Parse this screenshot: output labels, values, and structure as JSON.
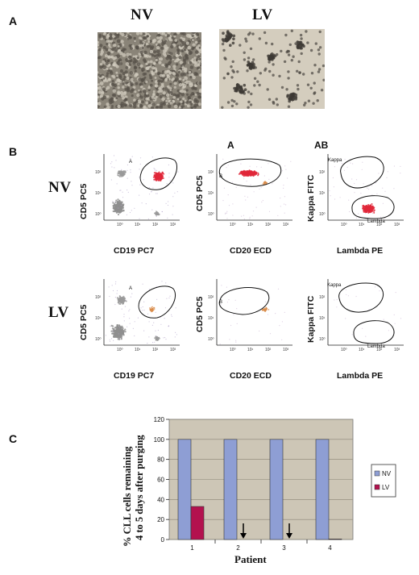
{
  "panel_a": {
    "letter": "A",
    "label_nv": "NV",
    "label_lv": "LV"
  },
  "panel_b": {
    "letter": "B",
    "row_nv": "NV",
    "row_lv": "LV",
    "plot_titles": [
      "",
      "A",
      "AB"
    ],
    "plots": [
      {
        "ylabel": "CD5 PC5",
        "xlabel": "CD19 PC7",
        "gate": "A"
      },
      {
        "ylabel": "CD5 PC5",
        "xlabel": "CD20 ECD",
        "gate": "B"
      },
      {
        "ylabel": "Kappa FITC",
        "xlabel": "Lambda PE",
        "gate_top": "Kappa",
        "gate_bottom": "Lambda"
      }
    ],
    "ticks": [
      "10⁰",
      "10¹",
      "10²"
    ],
    "xticks": [
      "10⁰",
      "10¹",
      "10²",
      "10³"
    ]
  },
  "panel_c": {
    "letter": "C",
    "chart_data": {
      "type": "bar",
      "categories": [
        "1",
        "2",
        "3",
        "4"
      ],
      "series": [
        {
          "name": "NV",
          "values": [
            100,
            100,
            100,
            100
          ],
          "color": "#8e9ed4"
        },
        {
          "name": "LV",
          "values": [
            33,
            0,
            0,
            0.5
          ],
          "color": "#b3124e"
        }
      ],
      "xlabel": "Patient",
      "ylabel_line1": "% CLL cells remaining",
      "ylabel_line2": "4 to 5 days  after purging",
      "ylim": [
        0,
        120
      ],
      "yticks": [
        "0",
        "20",
        "40",
        "60",
        "80",
        "100",
        "120"
      ],
      "plot_background": "#cdc6b6",
      "arrows_at_categories": [
        "2",
        "3"
      ],
      "legend_placement": "right",
      "grid": true
    }
  }
}
